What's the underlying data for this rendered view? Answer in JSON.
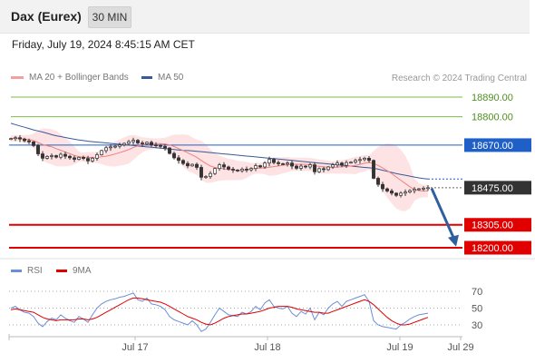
{
  "header": {
    "title": "Dax (Eurex)",
    "timeframe": "30 MIN",
    "datetime": "Friday, July 19, 2024 8:45:15 AM CET"
  },
  "legend": {
    "ma20_label": "MA 20 + Bollinger Bands",
    "ma50_label": "MA 50",
    "copyright": "Research © 2024 Trading Central"
  },
  "rsi_legend": {
    "rsi_label": "RSI",
    "ma_label": "9MA"
  },
  "colors": {
    "candle_up": "#ffffff",
    "candle_down": "#333333",
    "ma20": "#f08080",
    "bollinger_fill": "#fde3e3",
    "ma50": "#3b5998",
    "resistance_green": "#7cbb4a",
    "pivot_blue": "#1f5fc8",
    "support_red": "#e00000",
    "arrow": "#2f5f9f",
    "rsi": "#6a8fd8",
    "rsi_ma": "#e00000"
  },
  "chart_data": {
    "type": "candlestick",
    "price_range": [
      18160,
      18960
    ],
    "levels": [
      {
        "value": "18890.00",
        "kind": "resistance-green"
      },
      {
        "value": "18800.00",
        "kind": "resistance-green"
      },
      {
        "value": "18670.00",
        "kind": "pivot-blue"
      },
      {
        "value": "18475.00",
        "kind": "current-price"
      },
      {
        "value": "18305.00",
        "kind": "support-red"
      },
      {
        "value": "18200.00",
        "kind": "support-red"
      }
    ],
    "x_ticks": [
      "Jul 17",
      "Jul 18",
      "Jul 19",
      "Jul 29"
    ],
    "rsi_ticks": [
      "70",
      "50",
      "30"
    ],
    "closes": [
      18700,
      18704,
      18698,
      18690,
      18685,
      18668,
      18630,
      18610,
      18618,
      18622,
      18615,
      18628,
      18619,
      18612,
      18605,
      18614,
      18609,
      18598,
      18610,
      18626,
      18645,
      18658,
      18662,
      18665,
      18671,
      18678,
      18686,
      18692,
      18680,
      18676,
      18683,
      18671,
      18669,
      18664,
      18657,
      18632,
      18612,
      18600,
      18586,
      18575,
      18582,
      18568,
      18523,
      18526,
      18540,
      18563,
      18580,
      18570,
      18560,
      18556,
      18553,
      18560,
      18557,
      18563,
      18576,
      18570,
      18588,
      18605,
      18590,
      18585,
      18583,
      18588,
      18574,
      18564,
      18574,
      18570,
      18580,
      18548,
      18562,
      18558,
      18570,
      18580,
      18588,
      18578,
      18590,
      18592,
      18600,
      18604,
      18610,
      18600,
      18518,
      18490,
      18470,
      18460,
      18450,
      18440,
      18450,
      18455,
      18462,
      18468,
      18470,
      18473,
      18475
    ],
    "ma50": [
      18770,
      18764,
      18758,
      18752,
      18746,
      18740,
      18735,
      18730,
      18724,
      18718,
      18713,
      18709,
      18705,
      18701,
      18697,
      18694,
      18691,
      18688,
      18686,
      18684,
      18682,
      18680,
      18678,
      18676,
      18674,
      18672,
      18670,
      18668,
      18666,
      18664,
      18662,
      18660,
      18658,
      18656,
      18654,
      18652,
      18650,
      18648,
      18646,
      18645,
      18644,
      18642,
      18640,
      18638,
      18636,
      18634,
      18632,
      18630,
      18628,
      18626,
      18624,
      18622,
      18620,
      18618,
      18616,
      18614,
      18612,
      18610,
      18608,
      18606,
      18604,
      18602,
      18600,
      18598,
      18596,
      18594,
      18592,
      18590,
      18588,
      18586,
      18584,
      18582,
      18580,
      18578,
      18576,
      18574,
      18572,
      18570,
      18568,
      18566,
      18564,
      18560,
      18555,
      18550,
      18545,
      18540,
      18536,
      18532,
      18528,
      18524,
      18520,
      18517,
      18515
    ],
    "rsi": [
      50,
      52,
      48,
      45,
      44,
      40,
      32,
      28,
      34,
      38,
      36,
      42,
      38,
      35,
      33,
      40,
      37,
      33,
      42,
      50,
      55,
      58,
      60,
      61,
      63,
      64,
      66,
      68,
      60,
      58,
      62,
      55,
      54,
      52,
      48,
      40,
      36,
      34,
      32,
      30,
      35,
      30,
      22,
      25,
      33,
      42,
      50,
      46,
      42,
      41,
      40,
      45,
      43,
      46,
      52,
      48,
      56,
      60,
      52,
      50,
      49,
      52,
      44,
      40,
      46,
      43,
      50,
      36,
      45,
      42,
      50,
      55,
      58,
      52,
      58,
      60,
      62,
      64,
      66,
      58,
      35,
      30,
      28,
      27,
      26,
      25,
      30,
      33,
      37,
      40,
      42,
      43,
      44
    ],
    "rsi_ma": [
      48,
      49,
      48,
      47,
      46,
      45,
      42,
      39,
      37,
      36,
      35,
      36,
      36,
      36,
      36,
      37,
      37,
      36,
      37,
      39,
      42,
      45,
      48,
      51,
      54,
      57,
      60,
      62,
      62,
      61,
      60,
      59,
      58,
      57,
      55,
      52,
      49,
      46,
      43,
      40,
      38,
      36,
      33,
      31,
      30,
      32,
      35,
      38,
      40,
      41,
      42,
      43,
      43,
      44,
      45,
      46,
      48,
      50,
      51,
      52,
      52,
      52,
      51,
      49,
      48,
      47,
      46,
      45,
      45,
      44,
      44,
      46,
      48,
      50,
      52,
      54,
      56,
      58,
      60,
      58,
      54,
      49,
      44,
      39,
      35,
      32,
      30,
      30,
      31,
      33,
      35,
      37,
      39
    ]
  }
}
